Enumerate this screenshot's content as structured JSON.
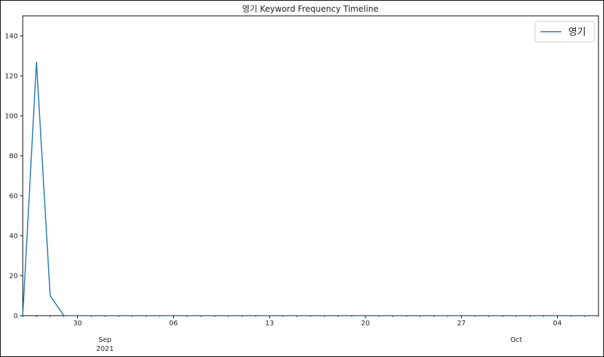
{
  "chart_data": {
    "type": "line",
    "title": "영기 Keyword Frequency Timeline",
    "xlabel": "",
    "ylabel": "",
    "x_start": "2021-08-26",
    "x_end": "2021-10-07",
    "ylim": [
      0,
      150
    ],
    "y_ticks": [
      0,
      20,
      40,
      60,
      80,
      100,
      120,
      140
    ],
    "x_major_ticks": [
      {
        "date": "2021-08-30",
        "label": "30"
      },
      {
        "date": "2021-09-06",
        "label": "06"
      },
      {
        "date": "2021-09-13",
        "label": "13"
      },
      {
        "date": "2021-09-20",
        "label": "20"
      },
      {
        "date": "2021-09-27",
        "label": "27"
      },
      {
        "date": "2021-10-04",
        "label": "04"
      }
    ],
    "x_month_labels": [
      {
        "date": "2021-09-01",
        "label": "Sep",
        "sub": "2021"
      },
      {
        "date": "2021-10-01",
        "label": "Oct",
        "sub": ""
      }
    ],
    "legend": {
      "position": "top-right"
    },
    "series": [
      {
        "name": "영기",
        "color": "#1f77b4",
        "x": [
          "2021-08-26",
          "2021-08-27",
          "2021-08-28",
          "2021-08-29",
          "2021-10-07"
        ],
        "values": [
          0,
          127,
          10,
          0,
          0
        ]
      }
    ],
    "grid": false
  }
}
